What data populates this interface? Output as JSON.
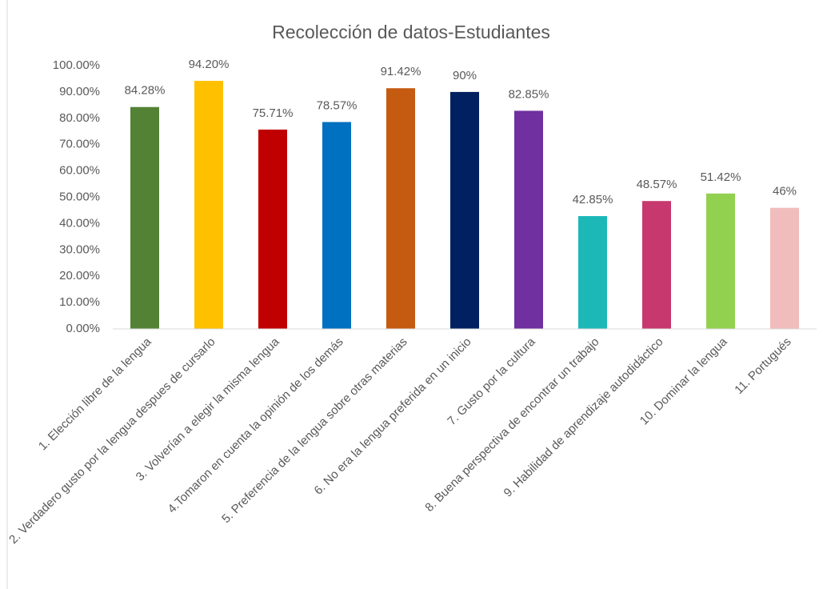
{
  "chart_data": {
    "type": "bar",
    "title": "Recolección de datos-Estudiantes",
    "categories": [
      "1. Elección libre de la lengua",
      "2. Verdadero gusto por la lengua despues de cursarlo",
      "3. Volverían a elegir la misma lengua",
      "4.Tomaron en cuenta la opinión de los demás",
      "5. Preferencia de la lengua sobre otras materias",
      "6. No era la lengua preferida en un inicio",
      "7. Gusto por la  cultura",
      "8. Buena perspectiva de encontrar un trabajo",
      "9. Habilidad de aprendizaje autodidáctico",
      "10. Dominar la lengua",
      "11. Portugués"
    ],
    "values": [
      84.28,
      94.2,
      75.71,
      78.57,
      91.42,
      90,
      82.85,
      42.85,
      48.57,
      51.42,
      46
    ],
    "value_labels": [
      "84.28%",
      "94.20%",
      "75.71%",
      "78.57%",
      "91.42%",
      "90%",
      "82.85%",
      "42.85%",
      "48.57%",
      "51.42%",
      "46%"
    ],
    "colors": [
      "#548235",
      "#ffc000",
      "#c00000",
      "#0070c0",
      "#c55a11",
      "#002060",
      "#7030a0",
      "#1cb8b8",
      "#c6386e",
      "#92d050",
      "#f0bcbc"
    ],
    "ylim": [
      0,
      100
    ],
    "yticks": [
      {
        "value": 0,
        "label": "0.00%"
      },
      {
        "value": 10,
        "label": "10.00%"
      },
      {
        "value": 20,
        "label": "20.00%"
      },
      {
        "value": 30,
        "label": "30.00%"
      },
      {
        "value": 40,
        "label": "40.00%"
      },
      {
        "value": 50,
        "label": "50.00%"
      },
      {
        "value": 60,
        "label": "60.00%"
      },
      {
        "value": 70,
        "label": "70.00%"
      },
      {
        "value": 80,
        "label": "80.00%"
      },
      {
        "value": 90,
        "label": "90.00%"
      },
      {
        "value": 100,
        "label": "100.00%"
      }
    ],
    "grid": false
  }
}
